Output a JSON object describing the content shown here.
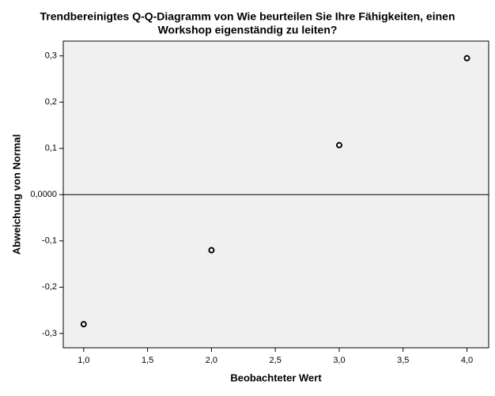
{
  "chart_data": {
    "type": "scatter",
    "title": [
      "Trendbereinigtes Q-Q-Diagramm von Wie beurteilen Sie Ihre Fähigkeiten, einen",
      "Workshop eigenständig zu leiten?"
    ],
    "x_label": "Beobachteter Wert",
    "y_label": "Abweichung von Normal",
    "x": [
      1.0,
      2.0,
      3.0,
      4.0
    ],
    "values": [
      -0.28,
      -0.12,
      0.107,
      0.295
    ],
    "color": "#000000",
    "reference_line": 0,
    "xlim": [
      0.84,
      4.17
    ],
    "ylim": [
      -0.331,
      0.332
    ],
    "xticks": [
      {
        "value": 1.0,
        "label": "1,0"
      },
      {
        "value": 1.5,
        "label": "1,5"
      },
      {
        "value": 2.0,
        "label": "2,0"
      },
      {
        "value": 2.5,
        "label": "2,5"
      },
      {
        "value": 3.0,
        "label": "3,0"
      },
      {
        "value": 3.5,
        "label": "3,5"
      },
      {
        "value": 4.0,
        "label": "4,0"
      }
    ],
    "yticks": [
      {
        "value": -0.3,
        "label": "-0,3"
      },
      {
        "value": -0.2,
        "label": "-0,2"
      },
      {
        "value": -0.1,
        "label": "-0,1"
      },
      {
        "value": 0,
        "label": "0,0000"
      },
      {
        "value": 0.1,
        "label": "0,1"
      },
      {
        "value": 0.2,
        "label": "0,2"
      },
      {
        "value": 0.3,
        "label": "0,3"
      }
    ]
  }
}
